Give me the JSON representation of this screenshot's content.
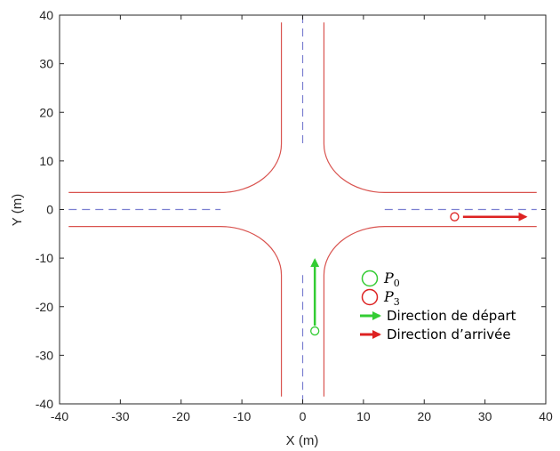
{
  "chart_data": {
    "type": "line",
    "xlabel": "X (m)",
    "ylabel": "Y (m)",
    "xlim": [
      -40,
      40
    ],
    "ylim": [
      -40,
      40
    ],
    "xticks": [
      -40,
      -30,
      -20,
      -10,
      0,
      10,
      20,
      30,
      40
    ],
    "yticks": [
      -40,
      -30,
      -20,
      -10,
      0,
      10,
      20,
      30,
      40
    ],
    "grid": false,
    "legend_position": "inside-bottom-right",
    "colors": {
      "road_edge": "#d9534f",
      "centerline": "#7b7fd1",
      "start": "#33cc33",
      "arrival": "#dd2222"
    },
    "road": {
      "half_width": 3.5,
      "corner_radius": 10,
      "extent": 38.5,
      "centerline_gap": 13.5
    },
    "points": {
      "P0": {
        "x": 2,
        "y": -25
      },
      "P3": {
        "x": 25,
        "y": -1.5
      }
    },
    "directions": {
      "start": {
        "from": [
          2,
          -25
        ],
        "to": [
          2,
          -10
        ]
      },
      "arrival": {
        "from": [
          25.5,
          -1.5
        ],
        "to": [
          37,
          -1.5
        ]
      }
    },
    "legend": [
      {
        "key": "P0",
        "base": "P",
        "sub": "0",
        "marker": "circle",
        "color": "#33cc33"
      },
      {
        "key": "P3",
        "base": "P",
        "sub": "3",
        "marker": "circle",
        "color": "#dd2222"
      },
      {
        "key": "start",
        "text": "Direction de départ",
        "marker": "arrow",
        "color": "#33cc33"
      },
      {
        "key": "arrival",
        "text": "Direction d’arrivée",
        "marker": "arrow",
        "color": "#dd2222"
      }
    ]
  }
}
